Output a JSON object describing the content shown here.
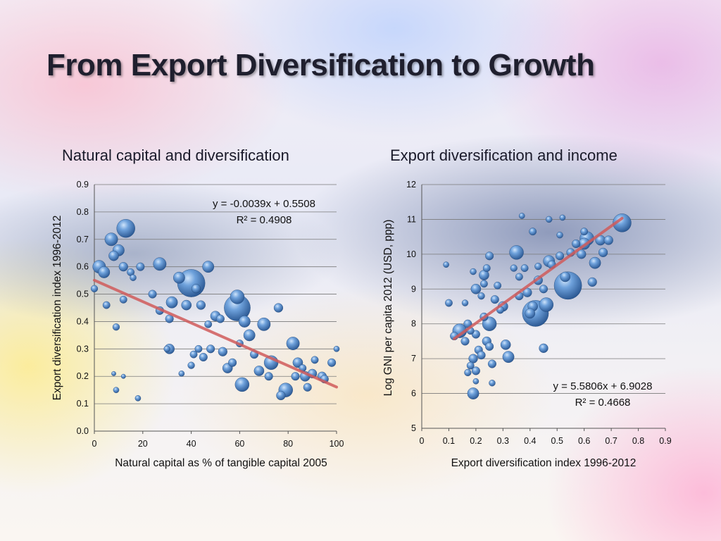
{
  "slide": {
    "title": "From Export Diversification to Growth"
  },
  "chart_data": [
    {
      "type": "scatter",
      "title": "Natural capital and diversification",
      "xlabel": "Natural capital as % of tangible capital 2005",
      "ylabel": "Export diversification index 1996-2012",
      "xlim": [
        0,
        100
      ],
      "ylim": [
        0,
        0.9
      ],
      "x_ticks": [
        "0",
        "20",
        "40",
        "60",
        "80",
        "100"
      ],
      "y_ticks": [
        "0.0",
        "0.1",
        "0.2",
        "0.3",
        "0.4",
        "0.5",
        "0.6",
        "0.7",
        "0.8",
        "0.9"
      ],
      "grid": "horizontal",
      "marker": "bubble",
      "marker_color": "#3f78b8",
      "trendline": {
        "slope": -0.0039,
        "intercept": 0.5508,
        "color": "#d05a5a"
      },
      "equation": "y = -0.0039x + 0.5508",
      "r_squared": "R² = 0.4908",
      "points": [
        {
          "x": 40,
          "y": 0.54,
          "size": 10
        },
        {
          "x": 59,
          "y": 0.45,
          "size": 9
        },
        {
          "x": 13,
          "y": 0.74,
          "size": 5
        },
        {
          "x": 59,
          "y": 0.49,
          "size": 3
        },
        {
          "x": 73,
          "y": 0.25,
          "size": 3
        },
        {
          "x": 27,
          "y": 0.61,
          "size": 2.5
        },
        {
          "x": 61,
          "y": 0.17,
          "size": 3
        },
        {
          "x": 79,
          "y": 0.15,
          "size": 3
        },
        {
          "x": 82,
          "y": 0.32,
          "size": 2.5
        },
        {
          "x": 2,
          "y": 0.6,
          "size": 2.5
        },
        {
          "x": 7,
          "y": 0.7,
          "size": 2.5
        },
        {
          "x": 10,
          "y": 0.66,
          "size": 2
        },
        {
          "x": 4,
          "y": 0.58,
          "size": 2
        },
        {
          "x": 32,
          "y": 0.47,
          "size": 2
        },
        {
          "x": 35,
          "y": 0.56,
          "size": 2
        },
        {
          "x": 47,
          "y": 0.6,
          "size": 2
        },
        {
          "x": 64,
          "y": 0.35,
          "size": 2
        },
        {
          "x": 70,
          "y": 0.39,
          "size": 2.5
        },
        {
          "x": 62,
          "y": 0.4,
          "size": 2
        },
        {
          "x": 31,
          "y": 0.3,
          "size": 1.5
        },
        {
          "x": 50,
          "y": 0.42,
          "size": 1.5
        },
        {
          "x": 53,
          "y": 0.29,
          "size": 1.2
        },
        {
          "x": 55,
          "y": 0.23,
          "size": 1.5
        },
        {
          "x": 45,
          "y": 0.27,
          "size": 1
        },
        {
          "x": 8,
          "y": 0.64,
          "size": 1.5
        },
        {
          "x": 12,
          "y": 0.6,
          "size": 1.2
        },
        {
          "x": 19,
          "y": 0.6,
          "size": 1
        },
        {
          "x": 38,
          "y": 0.46,
          "size": 1.5
        },
        {
          "x": 31,
          "y": 0.41,
          "size": 1
        },
        {
          "x": 68,
          "y": 0.22,
          "size": 1.5
        },
        {
          "x": 76,
          "y": 0.45,
          "size": 1.2
        },
        {
          "x": 84,
          "y": 0.25,
          "size": 1.5
        },
        {
          "x": 87,
          "y": 0.2,
          "size": 1.5
        },
        {
          "x": 90,
          "y": 0.21,
          "size": 1.2
        },
        {
          "x": 94,
          "y": 0.2,
          "size": 1.2
        },
        {
          "x": 88,
          "y": 0.16,
          "size": 1
        },
        {
          "x": 98,
          "y": 0.25,
          "size": 1
        },
        {
          "x": 95,
          "y": 0.19,
          "size": 1
        },
        {
          "x": 66,
          "y": 0.28,
          "size": 1
        },
        {
          "x": 72,
          "y": 0.2,
          "size": 1
        },
        {
          "x": 77,
          "y": 0.13,
          "size": 1.2
        },
        {
          "x": 83,
          "y": 0.2,
          "size": 1
        },
        {
          "x": 86,
          "y": 0.23,
          "size": 0.8
        },
        {
          "x": 91,
          "y": 0.26,
          "size": 0.8
        },
        {
          "x": 48,
          "y": 0.3,
          "size": 1
        },
        {
          "x": 47,
          "y": 0.39,
          "size": 0.8
        },
        {
          "x": 42,
          "y": 0.52,
          "size": 1.2
        },
        {
          "x": 44,
          "y": 0.46,
          "size": 1.2
        },
        {
          "x": 52,
          "y": 0.41,
          "size": 1
        },
        {
          "x": 57,
          "y": 0.25,
          "size": 1
        },
        {
          "x": 60,
          "y": 0.32,
          "size": 0.8
        },
        {
          "x": 24,
          "y": 0.5,
          "size": 1
        },
        {
          "x": 27,
          "y": 0.44,
          "size": 1
        },
        {
          "x": 15,
          "y": 0.58,
          "size": 0.8
        },
        {
          "x": 16,
          "y": 0.56,
          "size": 0.6
        },
        {
          "x": 5,
          "y": 0.46,
          "size": 0.8
        },
        {
          "x": 9,
          "y": 0.38,
          "size": 0.7
        },
        {
          "x": 12,
          "y": 0.48,
          "size": 0.8
        },
        {
          "x": 18,
          "y": 0.12,
          "size": 0.5
        },
        {
          "x": 9,
          "y": 0.15,
          "size": 0.5
        },
        {
          "x": 8,
          "y": 0.21,
          "size": 0.3
        },
        {
          "x": 12,
          "y": 0.2,
          "size": 0.3
        },
        {
          "x": 41,
          "y": 0.28,
          "size": 0.8
        },
        {
          "x": 43,
          "y": 0.3,
          "size": 0.8
        },
        {
          "x": 36,
          "y": 0.21,
          "size": 0.5
        },
        {
          "x": 40,
          "y": 0.24,
          "size": 0.7
        },
        {
          "x": 0,
          "y": 0.52,
          "size": 0.7
        },
        {
          "x": 30,
          "y": 0.3,
          "size": 0.6
        },
        {
          "x": 100,
          "y": 0.3,
          "size": 0.5
        }
      ]
    },
    {
      "type": "scatter",
      "title": "Export diversification and income",
      "xlabel": "Export diversification index 1996-2012",
      "ylabel": "Log GNI per capita 2012 (USD, ppp)",
      "xlim": [
        0,
        0.9
      ],
      "ylim": [
        5,
        12
      ],
      "x_ticks": [
        "0",
        "0.1",
        "0.2",
        "0.3",
        "0.4",
        "0.5",
        "0.6",
        "0.7",
        "0.8",
        "0.9"
      ],
      "y_ticks": [
        "5",
        "6",
        "7",
        "8",
        "9",
        "10",
        "11",
        "12"
      ],
      "grid": "horizontal",
      "marker": "bubble",
      "marker_color": "#3f78b8",
      "trendline": {
        "slope": 5.5806,
        "intercept": 6.9028,
        "color": "#d05a5a"
      },
      "equation": "y = 5.5806x + 6.9028",
      "r_squared": "R² = 0.4668",
      "points": [
        {
          "x": 0.54,
          "y": 9.1,
          "size": 10
        },
        {
          "x": 0.42,
          "y": 8.3,
          "size": 9
        },
        {
          "x": 0.74,
          "y": 10.9,
          "size": 5
        },
        {
          "x": 0.46,
          "y": 8.55,
          "size": 3
        },
        {
          "x": 0.61,
          "y": 10.45,
          "size": 3
        },
        {
          "x": 0.35,
          "y": 10.05,
          "size": 3
        },
        {
          "x": 0.14,
          "y": 7.8,
          "size": 3
        },
        {
          "x": 0.25,
          "y": 8.0,
          "size": 3
        },
        {
          "x": 0.32,
          "y": 7.05,
          "size": 2
        },
        {
          "x": 0.19,
          "y": 6.0,
          "size": 2
        },
        {
          "x": 0.64,
          "y": 9.75,
          "size": 2
        },
        {
          "x": 0.6,
          "y": 10.3,
          "size": 2
        },
        {
          "x": 0.66,
          "y": 10.4,
          "size": 1.5
        },
        {
          "x": 0.47,
          "y": 9.8,
          "size": 2
        },
        {
          "x": 0.53,
          "y": 9.35,
          "size": 1.5
        },
        {
          "x": 0.23,
          "y": 9.4,
          "size": 1.5
        },
        {
          "x": 0.2,
          "y": 9.0,
          "size": 1.5
        },
        {
          "x": 0.3,
          "y": 8.5,
          "size": 1.5
        },
        {
          "x": 0.41,
          "y": 8.5,
          "size": 1.5
        },
        {
          "x": 0.4,
          "y": 8.3,
          "size": 1.5
        },
        {
          "x": 0.45,
          "y": 7.3,
          "size": 1.2
        },
        {
          "x": 0.31,
          "y": 7.4,
          "size": 1.5
        },
        {
          "x": 0.24,
          "y": 7.5,
          "size": 1.2
        },
        {
          "x": 0.25,
          "y": 7.35,
          "size": 1
        },
        {
          "x": 0.21,
          "y": 7.25,
          "size": 1
        },
        {
          "x": 0.22,
          "y": 7.1,
          "size": 1
        },
        {
          "x": 0.19,
          "y": 7.0,
          "size": 1.2
        },
        {
          "x": 0.2,
          "y": 6.65,
          "size": 1
        },
        {
          "x": 0.26,
          "y": 6.85,
          "size": 1
        },
        {
          "x": 0.18,
          "y": 6.8,
          "size": 0.8
        },
        {
          "x": 0.16,
          "y": 7.5,
          "size": 1
        },
        {
          "x": 0.12,
          "y": 7.65,
          "size": 1
        },
        {
          "x": 0.17,
          "y": 8.0,
          "size": 1
        },
        {
          "x": 0.18,
          "y": 7.8,
          "size": 0.8
        },
        {
          "x": 0.2,
          "y": 7.7,
          "size": 1
        },
        {
          "x": 0.23,
          "y": 8.2,
          "size": 1
        },
        {
          "x": 0.27,
          "y": 8.7,
          "size": 1
        },
        {
          "x": 0.29,
          "y": 8.4,
          "size": 0.8
        },
        {
          "x": 0.28,
          "y": 9.1,
          "size": 0.8
        },
        {
          "x": 0.36,
          "y": 8.8,
          "size": 1
        },
        {
          "x": 0.39,
          "y": 8.9,
          "size": 1.2
        },
        {
          "x": 0.43,
          "y": 9.25,
          "size": 1.2
        },
        {
          "x": 0.45,
          "y": 9.0,
          "size": 1
        },
        {
          "x": 0.48,
          "y": 9.7,
          "size": 1
        },
        {
          "x": 0.51,
          "y": 9.95,
          "size": 1
        },
        {
          "x": 0.55,
          "y": 10.05,
          "size": 1
        },
        {
          "x": 0.57,
          "y": 10.3,
          "size": 1
        },
        {
          "x": 0.59,
          "y": 10.0,
          "size": 1.2
        },
        {
          "x": 0.63,
          "y": 9.2,
          "size": 1.2
        },
        {
          "x": 0.67,
          "y": 10.05,
          "size": 1.2
        },
        {
          "x": 0.69,
          "y": 10.4,
          "size": 1.2
        },
        {
          "x": 0.41,
          "y": 10.65,
          "size": 0.8
        },
        {
          "x": 0.38,
          "y": 9.6,
          "size": 0.8
        },
        {
          "x": 0.25,
          "y": 9.95,
          "size": 1
        },
        {
          "x": 0.23,
          "y": 9.15,
          "size": 0.8
        },
        {
          "x": 0.24,
          "y": 9.6,
          "size": 0.8
        },
        {
          "x": 0.19,
          "y": 9.5,
          "size": 0.6
        },
        {
          "x": 0.09,
          "y": 9.7,
          "size": 0.5
        },
        {
          "x": 0.1,
          "y": 8.6,
          "size": 0.8
        },
        {
          "x": 0.16,
          "y": 8.6,
          "size": 0.6
        },
        {
          "x": 0.22,
          "y": 8.8,
          "size": 0.7
        },
        {
          "x": 0.34,
          "y": 9.6,
          "size": 0.7
        },
        {
          "x": 0.43,
          "y": 9.65,
          "size": 0.7
        },
        {
          "x": 0.36,
          "y": 9.35,
          "size": 0.8
        },
        {
          "x": 0.47,
          "y": 11.0,
          "size": 0.6
        },
        {
          "x": 0.52,
          "y": 11.05,
          "size": 0.5
        },
        {
          "x": 0.37,
          "y": 11.1,
          "size": 0.5
        },
        {
          "x": 0.26,
          "y": 6.3,
          "size": 0.6
        },
        {
          "x": 0.17,
          "y": 6.6,
          "size": 0.7
        },
        {
          "x": 0.2,
          "y": 6.35,
          "size": 0.5
        },
        {
          "x": 0.6,
          "y": 10.65,
          "size": 0.8
        },
        {
          "x": 0.51,
          "y": 10.55,
          "size": 0.6
        }
      ]
    }
  ]
}
